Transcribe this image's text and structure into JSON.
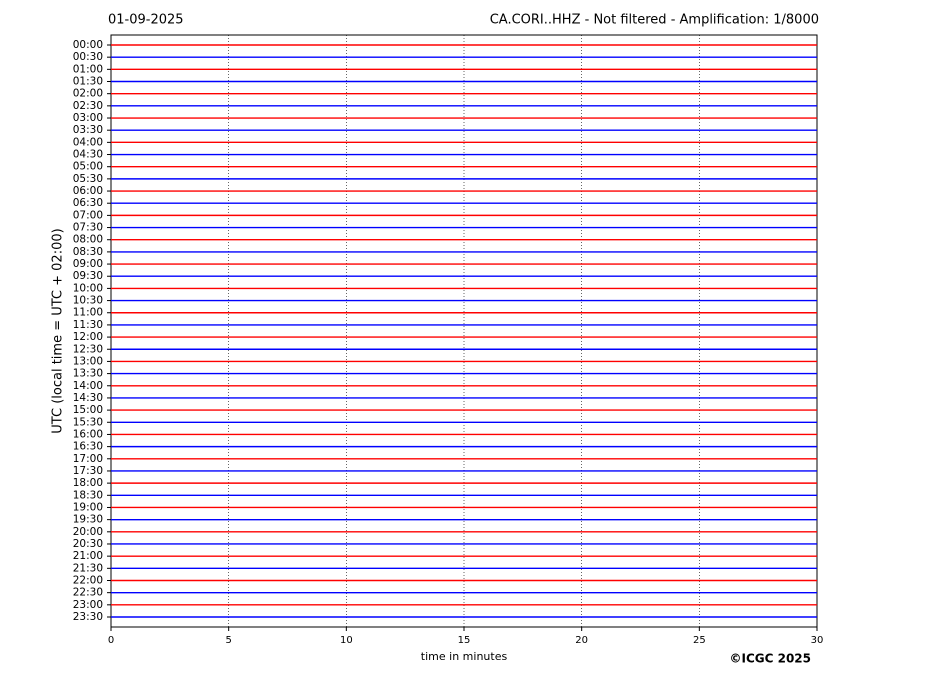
{
  "chart_data": {
    "type": "helicorder",
    "title": "CA.CORI..HHZ - Not filtered - Amplification: 1/8000",
    "date": "01-09-2025",
    "xlabel": "time in minutes",
    "ylabel": "UTC (local time = UTC + 02:00)",
    "copyright": "©ICGC 2025",
    "categories": [
      "00:00",
      "00:30",
      "01:00",
      "01:30",
      "02:00",
      "02:30",
      "03:00",
      "03:30",
      "04:00",
      "04:30",
      "05:00",
      "05:30",
      "06:00",
      "06:30",
      "07:00",
      "07:30",
      "08:00",
      "08:30",
      "09:00",
      "09:30",
      "10:00",
      "10:30",
      "11:00",
      "11:30",
      "12:00",
      "12:30",
      "13:00",
      "13:30",
      "14:00",
      "14:30",
      "15:00",
      "15:30",
      "16:00",
      "16:30",
      "17:00",
      "17:30",
      "18:00",
      "18:30",
      "19:00",
      "19:30",
      "20:00",
      "20:30",
      "21:00",
      "21:30",
      "22:00",
      "22:30",
      "23:00",
      "23:30"
    ],
    "colors": [
      "#ff0000",
      "#0000ff"
    ],
    "xlim": [
      0,
      30
    ],
    "xticks": [
      0,
      5,
      10,
      15,
      20,
      25,
      30
    ],
    "grid": true
  }
}
